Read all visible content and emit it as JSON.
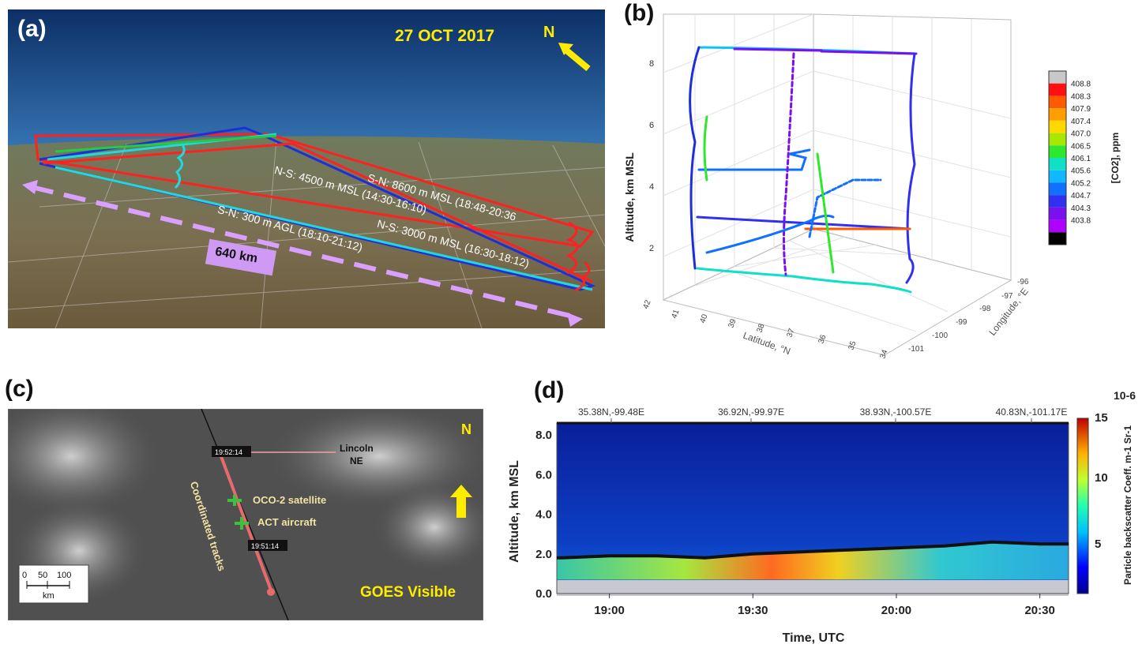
{
  "panel_a": {
    "label": "(a)",
    "date": "27 OCT 2017",
    "north": "N",
    "tracks": [
      {
        "text": "S-N: 8600 m MSL (18:48-20:36",
        "color": "#ff2020"
      },
      {
        "text": "N-S: 4500 m MSL (14:30-16:10)",
        "color": "#1f2fd8"
      },
      {
        "text": "N-S: 3000 m MSL (16:30-18:12)",
        "color": "#ff2020"
      },
      {
        "text": "S-N: 300 m AGL (18:10-21:12)",
        "color": "#22d8dc"
      }
    ],
    "distance": "640 km"
  },
  "panel_b": {
    "label": "(b)",
    "ylabel": "Altitude, km MSL",
    "xlabel": "Latitude, °N",
    "zlabel": "Longitude, °E",
    "altitude_ticks": [
      "2",
      "4",
      "6",
      "8"
    ],
    "latitude_ticks": [
      "42",
      "41",
      "40",
      "39",
      "38",
      "37",
      "36",
      "35",
      "34"
    ],
    "longitude_ticks": [
      "-96",
      "-97",
      "-98",
      "-99",
      "-100",
      "-101"
    ],
    "colorbar_label": "[CO2], ppm",
    "colorbar_ticks": [
      "408.8",
      "408.3",
      "407.9",
      "407.4",
      "407.0",
      "406.5",
      "406.1",
      "405.6",
      "405.2",
      "404.7",
      "404.3",
      "403.8"
    ],
    "colorbar_colors": [
      "#c8c8c8",
      "#ff1010",
      "#ff5a00",
      "#ff9e00",
      "#ffd800",
      "#a8e800",
      "#2ee82e",
      "#10e0c8",
      "#10b8ff",
      "#1070ff",
      "#3030f0",
      "#7a10f0",
      "#b000ff",
      "#000000"
    ]
  },
  "panel_c": {
    "label": "(c)",
    "north": "N",
    "time1": "19:52:14",
    "time2": "19:51:14",
    "city": "Lincoln\nNE",
    "satellite": "OCO-2 satellite",
    "aircraft": "ACT aircraft",
    "tracks": "Coordinated tracks",
    "source": "GOES Visible",
    "scale_ticks": [
      "0",
      "50",
      "100"
    ],
    "scale_unit": "km"
  },
  "panel_d": {
    "label": "(d)",
    "ylabel": "Altitude, km MSL",
    "xlabel": "Time, UTC",
    "top_labels": [
      "35.38N,-99.48E",
      "36.92N,-99.97E",
      "38.93N,-100.57E",
      "40.83N,-101.17E"
    ],
    "x_ticks": [
      "19:00",
      "19:30",
      "20:00",
      "20:30"
    ],
    "y_ticks": [
      "0.0",
      "2.0",
      "4.0",
      "6.0",
      "8.0"
    ],
    "colorbar_exponent": "10-6",
    "colorbar_ticks": [
      "15",
      "10",
      "5"
    ],
    "colorbar_label": "Particle backscatter Coeff. m-1 Sr-1"
  },
  "chart_data": [
    {
      "type": "scatter",
      "panel": "b",
      "xlabel": "Latitude, °N",
      "ylabel": "Altitude, km MSL",
      "zlabel": "Longitude, °E",
      "ylim": [
        0.5,
        8.5
      ],
      "colorbar": {
        "label": "[CO2], ppm",
        "min": 403.8,
        "max": 408.8
      },
      "legs_altitude_km": [
        8.6,
        4.5,
        3.0,
        0.3
      ]
    },
    {
      "type": "heatmap",
      "panel": "d",
      "xlabel": "Time, UTC",
      "ylabel": "Altitude, km MSL",
      "x_ticks": [
        "19:00",
        "19:30",
        "20:00",
        "20:30"
      ],
      "ylim": [
        0.0,
        8.6
      ],
      "colorbar": {
        "label": "Particle backscatter Coeff. m-1 Sr-1",
        "scale": "1e-6",
        "min": 2,
        "max": 15
      },
      "boundary_layer_height_km": [
        {
          "time": "18:50",
          "value": 1.8
        },
        {
          "time": "19:00",
          "value": 1.9
        },
        {
          "time": "19:10",
          "value": 1.9
        },
        {
          "time": "19:20",
          "value": 1.8
        },
        {
          "time": "19:30",
          "value": 2.0
        },
        {
          "time": "19:40",
          "value": 2.1
        },
        {
          "time": "19:50",
          "value": 2.2
        },
        {
          "time": "20:00",
          "value": 2.3
        },
        {
          "time": "20:10",
          "value": 2.4
        },
        {
          "time": "20:20",
          "value": 2.6
        },
        {
          "time": "20:30",
          "value": 2.5
        }
      ]
    }
  ]
}
